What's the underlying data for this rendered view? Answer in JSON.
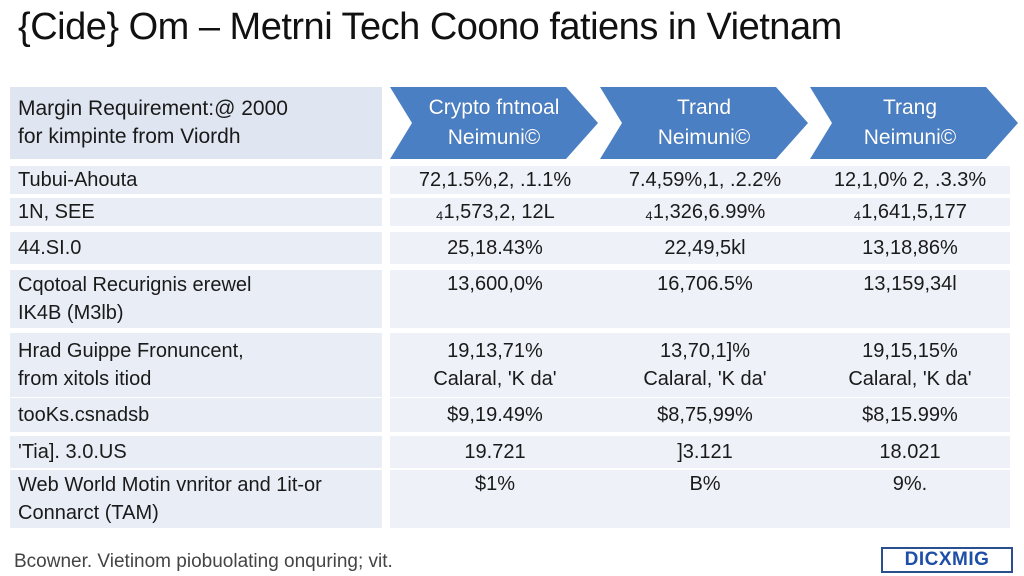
{
  "title": "{Cide} Om – Metrni Tech Coono fatiens in Vietnam",
  "header": {
    "label_line1": "Margin Requirement:@ 2000",
    "label_line2": "for kimpinte from Viordh",
    "columns": [
      {
        "line1": "Crypto fntnoal",
        "line2": "Neimuni©"
      },
      {
        "line1": "Trand",
        "line2": "Neimuni©"
      },
      {
        "line1": "Trang",
        "line2": "Neimuni©"
      }
    ]
  },
  "rows": [
    {
      "label": [
        "Tubui-Ahouta"
      ],
      "values": [
        [
          "72,1.5%,2, .1.1%"
        ],
        [
          "7.4,59%,1, .2.2%"
        ],
        [
          "12,1,0% 2, .3.3%"
        ]
      ]
    },
    {
      "label": [
        "1N, SEE"
      ],
      "values": [
        [
          "₄1,573,2, 12L"
        ],
        [
          "₄1,326,6.99%"
        ],
        [
          "₄1,641,5,177"
        ]
      ]
    },
    {
      "label": [
        "44.SI.0"
      ],
      "values": [
        [
          "25,18.43%"
        ],
        [
          "22,49,5kl"
        ],
        [
          "13,18,86%"
        ]
      ]
    },
    {
      "label": [
        "Cqotoal Recurignis erewel",
        "IK4B (M3lb)"
      ],
      "values": [
        [
          "13,600,0%"
        ],
        [
          "16,706.5%"
        ],
        [
          "13,159,34l"
        ]
      ]
    },
    {
      "label": [
        "Hrad Guippe Fronuncent,",
        "from xitols itiod"
      ],
      "values": [
        [
          "19,13,71%",
          "Calaral, 'K da'"
        ],
        [
          "13,70,1]%",
          "Calaral, 'K da'"
        ],
        [
          "19,15,15%",
          "Calaral, 'K da'"
        ]
      ]
    },
    {
      "label": [
        "tooKs.csnadsb"
      ],
      "values": [
        [
          "$9,19.49%"
        ],
        [
          "$8,75,99%"
        ],
        [
          "$8,15.99%"
        ]
      ]
    },
    {
      "label": [
        "'Tia]. 3.0.US"
      ],
      "values": [
        [
          "19.721"
        ],
        [
          "]3.121"
        ],
        [
          "18.021"
        ]
      ]
    },
    {
      "label": [
        "Web World Motin vnritor and 1it-or",
        "Connarct (TAM)"
      ],
      "values": [
        [
          "$1%"
        ],
        [
          "B%"
        ],
        [
          "9%."
        ]
      ]
    }
  ],
  "footer": "Bcowner. Vietinom piobuolating onquring; vit.",
  "logo": "DICXMIG",
  "colors": {
    "arrow": "#4a7fc4",
    "label_bg": "#e9eef6",
    "value_bg": "#eef2f8"
  }
}
